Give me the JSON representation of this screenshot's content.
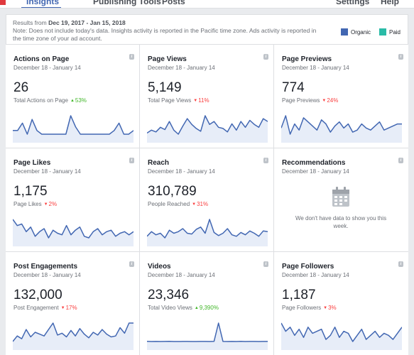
{
  "nav": {
    "tabs": [
      {
        "label": "Insights",
        "active": true
      },
      {
        "label": "Publishing Tools",
        "active": false
      },
      {
        "label": "Posts",
        "active": false
      },
      {
        "label": "Settings",
        "active": false
      },
      {
        "label": "Help",
        "active": false
      }
    ]
  },
  "notice": {
    "prefix": "Results from ",
    "range": "Dec 19, 2017 - Jan 15, 2018",
    "note": "Note: Does not include today's data. Insights activity is reported in the Pacific time zone. Ads activity is reported in the time zone of your ad account."
  },
  "legend": [
    {
      "label": "Organic",
      "color": "#4267b2"
    },
    {
      "label": "Paid",
      "color": "#2abba7"
    }
  ],
  "cards": [
    {
      "title": "Actions on Page",
      "range": "December 18 - January 14",
      "value": "26",
      "metric": "Total Actions on Page",
      "delta": "53%",
      "direction": "up",
      "series": [
        1,
        1,
        3,
        0,
        4,
        1,
        0,
        0,
        0,
        0,
        0,
        0,
        5,
        2,
        0,
        0,
        0,
        0,
        0,
        0,
        0,
        1,
        3,
        0,
        0,
        1
      ]
    },
    {
      "title": "Page Views",
      "range": "December 18 - January 14",
      "value": "5,149",
      "metric": "Total Page Views",
      "delta": "11%",
      "direction": "down",
      "series": [
        180,
        185,
        182,
        190,
        186,
        200,
        185,
        178,
        192,
        205,
        195,
        188,
        183,
        210,
        195,
        200,
        190,
        188,
        182,
        196,
        185,
        200,
        190,
        202,
        195,
        190,
        205,
        200
      ]
    },
    {
      "title": "Page Previews",
      "range": "December 18 - January 14",
      "value": "774",
      "metric": "Page Previews",
      "delta": "24%",
      "direction": "down",
      "series": [
        28,
        34,
        25,
        30,
        27,
        33,
        31,
        29,
        27,
        32,
        30,
        26,
        29,
        31,
        28,
        30,
        26,
        27,
        30,
        28,
        27,
        29,
        31,
        27,
        28,
        29,
        30,
        30
      ]
    },
    {
      "title": "Page Likes",
      "range": "December 18 - January 14",
      "value": "1,175",
      "metric": "Page Likes",
      "delta": "2%",
      "direction": "down",
      "series": [
        48,
        44,
        45,
        40,
        43,
        37,
        40,
        42,
        36,
        41,
        39,
        38,
        44,
        38,
        41,
        43,
        37,
        36,
        40,
        42,
        38,
        40,
        41,
        37,
        39,
        40,
        38,
        40
      ]
    },
    {
      "title": "Reach",
      "range": "December 18 - January 14",
      "value": "310,789",
      "metric": "People Reached",
      "delta": "31%",
      "direction": "down",
      "series": [
        11000,
        14000,
        12000,
        13000,
        10000,
        15000,
        13000,
        14000,
        16000,
        13000,
        12500,
        15500,
        17000,
        13000,
        22000,
        13500,
        11500,
        13000,
        16000,
        12000,
        11000,
        13500,
        12000,
        14500,
        13000,
        11000,
        14500,
        14000
      ]
    },
    {
      "title": "Recommendations",
      "range": "December 18 - January 14",
      "empty": "We don't have data to show you this week."
    },
    {
      "title": "Post Engagements",
      "range": "December 18 - January 14",
      "value": "132,000",
      "metric": "Post Engagement",
      "delta": "17%",
      "direction": "down",
      "series": [
        4200,
        4800,
        4500,
        5500,
        4700,
        5200,
        5000,
        4800,
        5500,
        6200,
        4900,
        5100,
        4700,
        5400,
        4800,
        5600,
        5000,
        4600,
        5200,
        4900,
        5500,
        5000,
        4700,
        4800,
        5700,
        5100,
        6200,
        6200
      ]
    },
    {
      "title": "Videos",
      "range": "December 18 - January 14",
      "value": "23,346",
      "metric": "Total Video Views",
      "delta": "9,390%",
      "direction": "up",
      "series": [
        200,
        150,
        180,
        160,
        170,
        190,
        150,
        160,
        180,
        170,
        150,
        160,
        180,
        170,
        160,
        190,
        6800,
        180,
        160,
        170,
        150,
        190,
        160,
        170,
        180,
        160,
        170,
        180
      ]
    },
    {
      "title": "Page Followers",
      "range": "December 18 - January 14",
      "value": "1,187",
      "metric": "Page Followers",
      "delta": "3%",
      "direction": "down",
      "series": [
        46,
        42,
        44,
        40,
        43,
        39,
        44,
        41,
        42,
        43,
        38,
        40,
        44,
        39,
        42,
        41,
        37,
        40,
        43,
        38,
        40,
        42,
        39,
        41,
        40,
        38,
        41,
        44
      ]
    }
  ]
}
